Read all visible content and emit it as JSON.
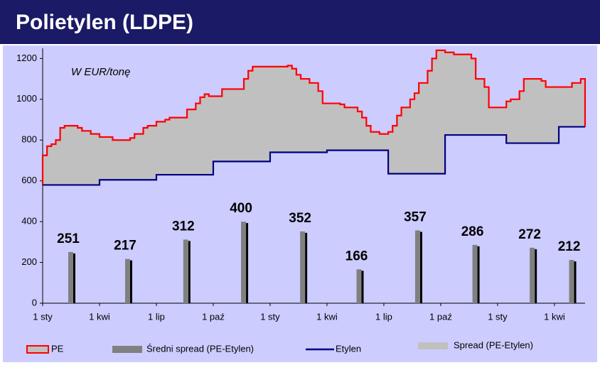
{
  "chart_data": {
    "type": "line",
    "title": "Polietylen (LDPE)",
    "annotation": "W EUR/tonę",
    "xlim": [
      0,
      124
    ],
    "xticks": [
      {
        "value": 0,
        "label": "1 sty"
      },
      {
        "value": 13,
        "label": "1 kwi"
      },
      {
        "value": 26,
        "label": "1 lip"
      },
      {
        "value": 39,
        "label": "1 paź"
      },
      {
        "value": 52,
        "label": "1 sty"
      },
      {
        "value": 65,
        "label": "1 kwi"
      },
      {
        "value": 78,
        "label": "1 lip"
      },
      {
        "value": 91,
        "label": "1 paź"
      },
      {
        "value": 104,
        "label": "1 sty"
      },
      {
        "value": 117,
        "label": "1 kwi"
      }
    ],
    "ylim": [
      0,
      1250
    ],
    "yticks": [
      0,
      200,
      400,
      600,
      800,
      1000,
      1200
    ],
    "series": [
      {
        "name": "PE",
        "type": "step",
        "color": "#ff0000",
        "x": [
          0,
          1,
          2,
          3,
          4,
          5,
          8,
          9,
          11,
          13,
          16,
          19,
          20,
          21,
          23,
          24,
          26,
          28,
          29,
          33,
          35,
          36,
          37,
          38,
          41,
          45,
          46,
          47,
          48,
          55,
          56,
          57,
          58,
          59,
          61,
          63,
          64,
          68,
          69,
          72,
          73,
          74,
          75,
          77,
          79,
          80,
          81,
          82,
          84,
          85,
          86,
          88,
          89,
          90,
          92,
          94,
          98,
          99,
          101,
          102,
          104,
          106,
          107,
          109,
          110,
          114,
          115,
          119,
          121,
          123
        ],
        "values": [
          725,
          770,
          780,
          800,
          860,
          870,
          860,
          845,
          830,
          815,
          800,
          800,
          810,
          830,
          860,
          870,
          890,
          900,
          910,
          950,
          980,
          1010,
          1025,
          1015,
          1050,
          1050,
          1100,
          1140,
          1160,
          1160,
          1165,
          1150,
          1120,
          1100,
          1080,
          1040,
          980,
          975,
          960,
          940,
          910,
          870,
          840,
          830,
          840,
          870,
          920,
          960,
          1000,
          1030,
          1080,
          1140,
          1200,
          1240,
          1230,
          1220,
          1200,
          1100,
          1060,
          960,
          960,
          990,
          1000,
          1040,
          1100,
          1090,
          1060,
          1060,
          1080,
          1100
        ]
      },
      {
        "name": "Etylen",
        "type": "step",
        "color": "#000080",
        "x": [
          0,
          13,
          26,
          39,
          52,
          65,
          79,
          92,
          106,
          118
        ],
        "values": [
          580,
          605,
          630,
          695,
          740,
          750,
          635,
          825,
          785,
          865
        ]
      },
      {
        "name": "Spread (PE-Etylen)",
        "type": "area",
        "color": "#c0c0c0"
      },
      {
        "name": "Średni spread (PE-Etylen)",
        "type": "bar",
        "color": "#808080",
        "x": [
          6.5,
          19.5,
          32.8,
          46,
          59.5,
          72.4,
          85.8,
          98.9,
          112,
          121
        ],
        "values": [
          251,
          217,
          312,
          400,
          352,
          166,
          357,
          286,
          272,
          212
        ]
      }
    ]
  }
}
